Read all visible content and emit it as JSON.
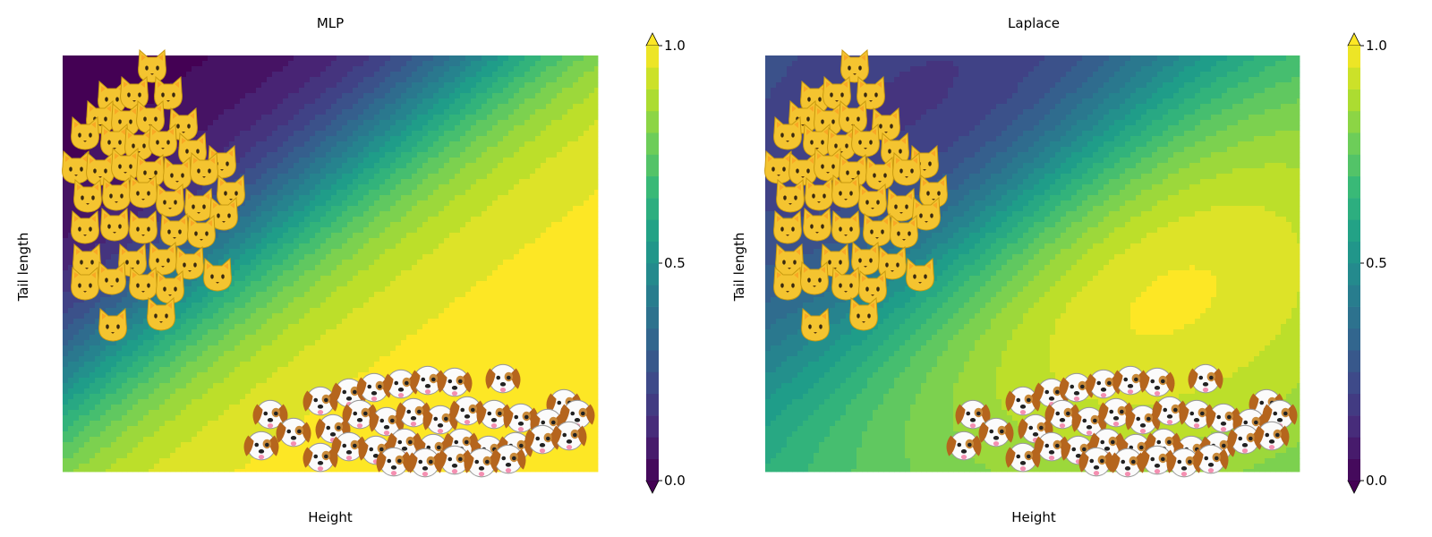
{
  "chart_data": [
    {
      "type": "heatmap",
      "title": "MLP",
      "xlabel": "Height",
      "ylabel": "Tail length",
      "colorbar": {
        "min": 0.0,
        "max": 1.0,
        "ticks": [
          "0.0",
          "0.5",
          "1.0"
        ],
        "levels": 20,
        "extend": "both",
        "colormap": "viridis"
      },
      "series": [
        {
          "name": "cats",
          "marker": "cat-face-emoji",
          "color": "#f2c230"
        },
        {
          "name": "dogs",
          "marker": "dog-face-emoji",
          "color": "#ffffff"
        }
      ]
    },
    {
      "type": "heatmap",
      "title": "Laplace",
      "xlabel": "Height",
      "ylabel": "Tail length",
      "colorbar": {
        "min": 0.0,
        "max": 1.0,
        "ticks": [
          "0.0",
          "0.5",
          "1.0"
        ],
        "levels": 20,
        "extend": "both",
        "colormap": "viridis"
      },
      "series": [
        {
          "name": "cats",
          "marker": "cat-face-emoji",
          "color": "#f2c230"
        },
        {
          "name": "dogs",
          "marker": "dog-face-emoji",
          "color": "#ffffff"
        }
      ]
    }
  ]
}
